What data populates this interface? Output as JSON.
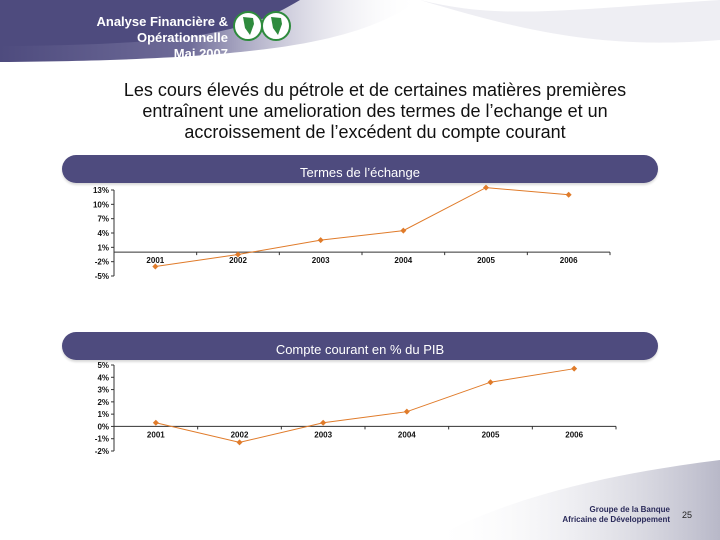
{
  "header": {
    "line1": "Analyse Financière & Opérationnelle",
    "line2": "Mai 2007"
  },
  "colors": {
    "header_bg": "#4e4b7e",
    "band_bg": "#4e4b7e",
    "series": "#e07b2a",
    "logo_green": "#2e8b3d"
  },
  "title": {
    "line1": "Les cours élevés du pétrole et de certaines matières premières",
    "line2": "entraînent une amelioration des termes de l’echange et un",
    "line3": "accroissement de l’excédent du compte courant"
  },
  "chart_data": [
    {
      "type": "line",
      "title": "Termes de l’échange",
      "categories": [
        "2001",
        "2002",
        "2003",
        "2004",
        "2005",
        "2006"
      ],
      "values": [
        -3,
        -0.5,
        2.5,
        4.5,
        13.5,
        12
      ],
      "yticks": [
        "13%",
        "10%",
        "7%",
        "4%",
        "1%",
        "-2%",
        "-5%"
      ],
      "ytick_values": [
        13,
        10,
        7,
        4,
        1,
        -2,
        -5
      ],
      "ylim": [
        -5,
        13
      ],
      "grid": false
    },
    {
      "type": "line",
      "title": "Compte courant en % du PIB",
      "categories": [
        "2001",
        "2002",
        "2003",
        "2004",
        "2005",
        "2006"
      ],
      "values": [
        0.3,
        -1.3,
        0.3,
        1.2,
        3.6,
        4.7
      ],
      "yticks": [
        "5%",
        "4%",
        "3%",
        "2%",
        "1%",
        "0%",
        "-1%",
        "-2%"
      ],
      "ytick_values": [
        5,
        4,
        3,
        2,
        1,
        0,
        -1,
        -2
      ],
      "ylim": [
        -2,
        5
      ],
      "grid": false
    }
  ],
  "footer": {
    "line1": "Groupe de la Banque",
    "line2": "Africaine de Développement",
    "page": "25"
  }
}
